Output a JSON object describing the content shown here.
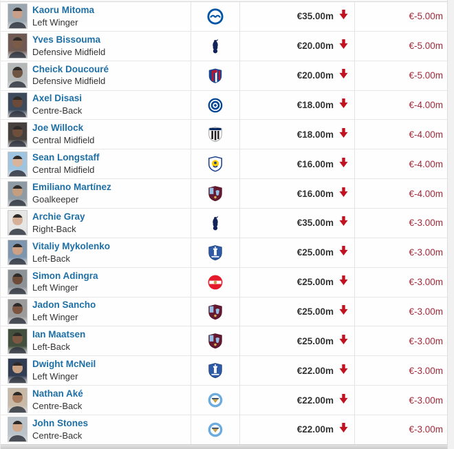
{
  "colors": {
    "link_blue": "#1d6fa5",
    "text_dark": "#333333",
    "negative_red": "#a02a3a",
    "arrow_red": "#c1121f",
    "row_background": "#fefefe",
    "divider_grey": "#e4e4e4"
  },
  "icons": {
    "value_arrow": "down-arrow-icon"
  },
  "badges": {
    "brighton": {
      "shape": "brighton",
      "colors": [
        "#0054a6",
        "#ffffff"
      ]
    },
    "tottenham": {
      "shape": "tottenham",
      "colors": [
        "#132257",
        "#ffffff"
      ]
    },
    "crystal-palace": {
      "shape": "crystal-palace",
      "colors": [
        "#1b458f",
        "#c4122e",
        "#ffffff"
      ]
    },
    "chelsea": {
      "shape": "chelsea",
      "colors": [
        "#034694",
        "#ffffff",
        "#2a2a6a"
      ]
    },
    "newcastle": {
      "shape": "newcastle",
      "colors": [
        "#ffffff",
        "#241f20",
        "#00275d"
      ]
    },
    "leeds": {
      "shape": "leeds",
      "colors": [
        "#ffffff",
        "#1d428a",
        "#ffcd00"
      ]
    },
    "aston-villa": {
      "shape": "aston-villa",
      "colors": [
        "#67192f",
        "#95bfe5",
        "#d4b14e"
      ]
    },
    "everton": {
      "shape": "everton",
      "colors": [
        "#2e5aa8",
        "#ffffff"
      ]
    },
    "sunderland": {
      "shape": "sunderland",
      "colors": [
        "#e51b2c",
        "#ffffff",
        "#c8a24b"
      ]
    },
    "man-city": {
      "shape": "man-city",
      "colors": [
        "#6cabdd",
        "#ffffff",
        "#c8a24b"
      ]
    }
  },
  "rows": [
    {
      "name": "Kaoru Mitoma",
      "position": "Left Winger",
      "club": "brighton",
      "value": "€35.00m",
      "change": "€-5.00m",
      "photo": {
        "bg": "#9aa7b0",
        "skin": "#c8a08a"
      }
    },
    {
      "name": "Yves Bissouma",
      "position": "Defensive Midfield",
      "club": "tottenham",
      "value": "€20.00m",
      "change": "€-5.00m",
      "photo": {
        "bg": "#6e5a52",
        "skin": "#7a5b47"
      }
    },
    {
      "name": "Cheick Doucouré",
      "position": "Defensive Midfield",
      "club": "crystal-palace",
      "value": "€20.00m",
      "change": "€-5.00m",
      "photo": {
        "bg": "#b4b8b8",
        "skin": "#6f5544"
      }
    },
    {
      "name": "Axel Disasi",
      "position": "Centre-Back",
      "club": "chelsea",
      "value": "€18.00m",
      "change": "€-4.00m",
      "photo": {
        "bg": "#3c4a5c",
        "skin": "#6b4a39"
      }
    },
    {
      "name": "Joe Willock",
      "position": "Central Midfield",
      "club": "newcastle",
      "value": "€18.00m",
      "change": "€-4.00m",
      "photo": {
        "bg": "#46413f",
        "skin": "#6e4f3c"
      }
    },
    {
      "name": "Sean Longstaff",
      "position": "Central Midfield",
      "club": "leeds",
      "value": "€16.00m",
      "change": "€-4.00m",
      "photo": {
        "bg": "#9fc4e0",
        "skin": "#d9b49a"
      }
    },
    {
      "name": "Emiliano Martínez",
      "position": "Goalkeeper",
      "club": "aston-villa",
      "value": "€16.00m",
      "change": "€-4.00m",
      "photo": {
        "bg": "#8e9aa4",
        "skin": "#c59d7f"
      }
    },
    {
      "name": "Archie Gray",
      "position": "Right-Back",
      "club": "tottenham",
      "value": "€35.00m",
      "change": "€-3.00m",
      "photo": {
        "bg": "#e6e6e4",
        "skin": "#d6b098"
      }
    },
    {
      "name": "Vitaliy Mykolenko",
      "position": "Left-Back",
      "club": "everton",
      "value": "€25.00m",
      "change": "€-3.00m",
      "photo": {
        "bg": "#7d96ad",
        "skin": "#cfa184"
      }
    },
    {
      "name": "Simon Adingra",
      "position": "Left Winger",
      "club": "sunderland",
      "value": "€25.00m",
      "change": "€-3.00m",
      "photo": {
        "bg": "#8d9296",
        "skin": "#6d4c3a"
      }
    },
    {
      "name": "Jadon Sancho",
      "position": "Left Winger",
      "club": "aston-villa",
      "value": "€25.00m",
      "change": "€-3.00m",
      "photo": {
        "bg": "#9b9b9b",
        "skin": "#7b553f"
      }
    },
    {
      "name": "Ian Maatsen",
      "position": "Left-Back",
      "club": "aston-villa",
      "value": "€25.00m",
      "change": "€-3.00m",
      "photo": {
        "bg": "#44503e",
        "skin": "#7c5843"
      }
    },
    {
      "name": "Dwight McNeil",
      "position": "Left Winger",
      "club": "everton",
      "value": "€22.00m",
      "change": "€-3.00m",
      "photo": {
        "bg": "#313d52",
        "skin": "#c9a183"
      }
    },
    {
      "name": "Nathan Aké",
      "position": "Centre-Back",
      "club": "man-city",
      "value": "€22.00m",
      "change": "€-3.00m",
      "photo": {
        "bg": "#c7b9a6",
        "skin": "#a97c5f"
      }
    },
    {
      "name": "John Stones",
      "position": "Centre-Back",
      "club": "man-city",
      "value": "€22.00m",
      "change": "€-3.00m",
      "photo": {
        "bg": "#b9c3c9",
        "skin": "#d0a98c"
      }
    }
  ]
}
